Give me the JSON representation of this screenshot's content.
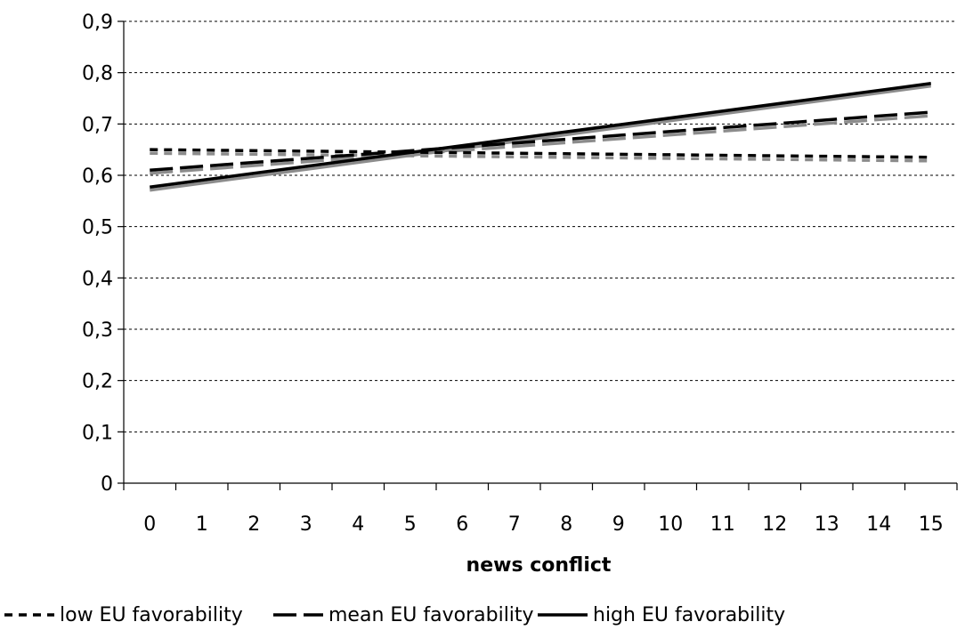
{
  "chart_data": {
    "type": "line",
    "title": "",
    "xlabel": "news conflict",
    "ylabel": "",
    "x": [
      0,
      15
    ],
    "xticks": [
      "0",
      "1",
      "2",
      "3",
      "4",
      "5",
      "6",
      "7",
      "8",
      "9",
      "10",
      "11",
      "12",
      "13",
      "14",
      "15"
    ],
    "yticks": [
      "0",
      "0,1",
      "0,2",
      "0,3",
      "0,4",
      "0,5",
      "0,6",
      "0,7",
      "0,8",
      "0,9"
    ],
    "ylim": [
      0,
      0.9
    ],
    "grid": "horizontal-dotted",
    "legend_position": "bottom",
    "series": [
      {
        "name": "low EU favorability",
        "values": [
          0.65,
          0.635
        ],
        "shadow_values": [
          0.643,
          0.628
        ],
        "style": "dotted"
      },
      {
        "name": "mean EU favorability",
        "values": [
          0.61,
          0.723
        ],
        "shadow_values": [
          0.604,
          0.716
        ],
        "style": "dashed"
      },
      {
        "name": "high EU favorability",
        "values": [
          0.577,
          0.779
        ],
        "shadow_values": [
          0.571,
          0.774
        ],
        "style": "solid"
      }
    ],
    "colors": {
      "main": "#000000",
      "shadow": "#8c8c8c",
      "grid": "#000000"
    }
  }
}
